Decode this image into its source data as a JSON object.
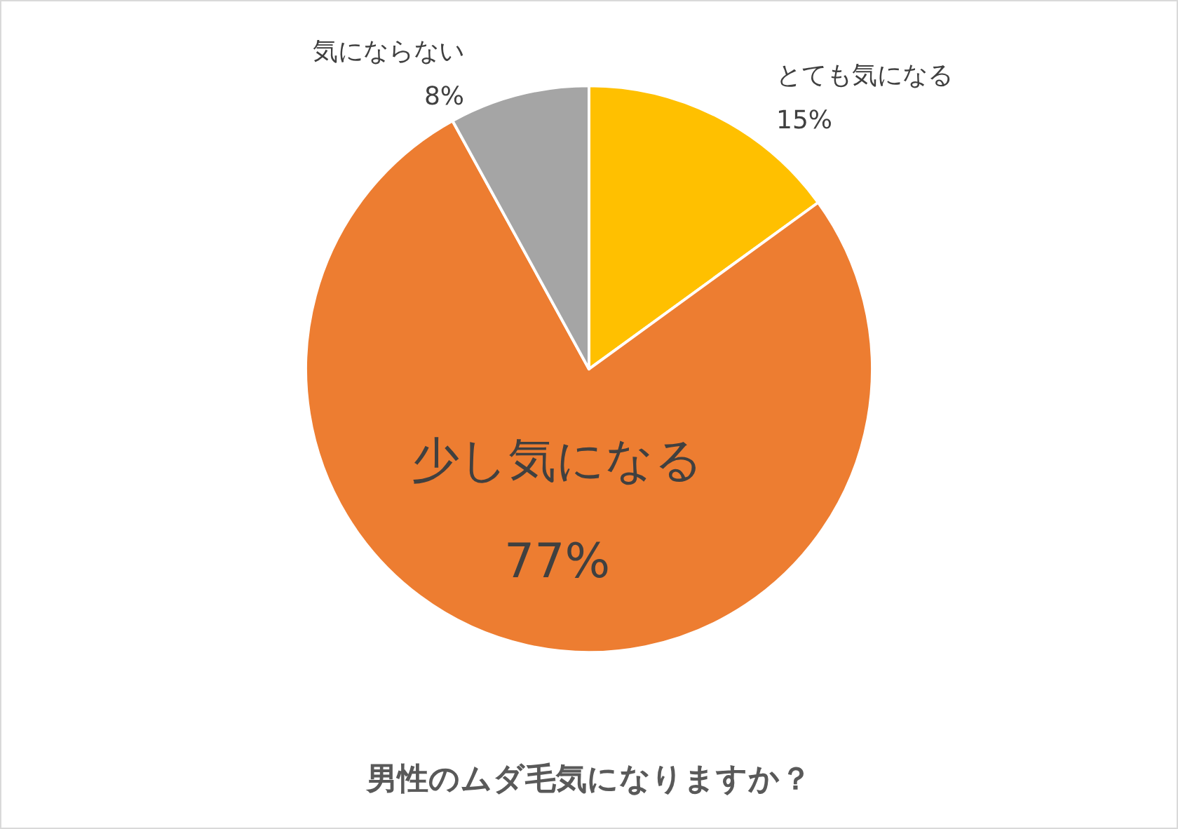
{
  "chart_data": {
    "type": "pie",
    "title": "男性のムダ毛気になりますか？",
    "categories": [
      "とても気になる",
      "少し気になる",
      "気にならない"
    ],
    "values": [
      15,
      77,
      8
    ],
    "colors": [
      "#ffc000",
      "#ed7d31",
      "#a5a5a5"
    ],
    "value_labels": [
      "15%",
      "77%",
      "8%"
    ],
    "legend": false
  }
}
